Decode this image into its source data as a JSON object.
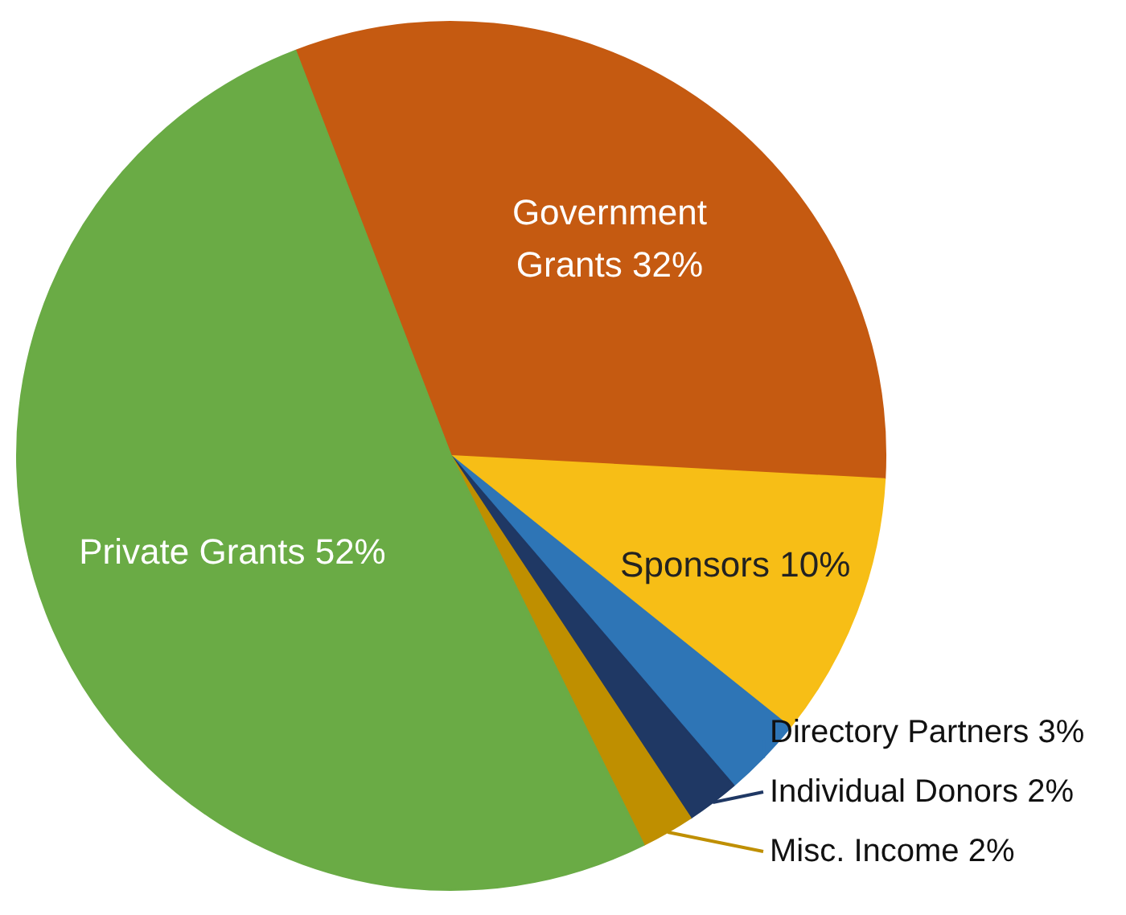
{
  "chart_data": {
    "type": "pie",
    "categories": [
      "Government Grants",
      "Sponsors",
      "Directory Partners",
      "Individual Donors",
      "Misc. Income",
      "Private Grants"
    ],
    "values": [
      32,
      10,
      3,
      2,
      2,
      52
    ],
    "value_labels": [
      "32%",
      "10%",
      "3%",
      "2%",
      "2%",
      "52%"
    ],
    "colors": [
      "#c55a11",
      "#f7be16",
      "#2e75b6",
      "#1f3864",
      "#bf8f00",
      "#6aab45"
    ]
  }
}
